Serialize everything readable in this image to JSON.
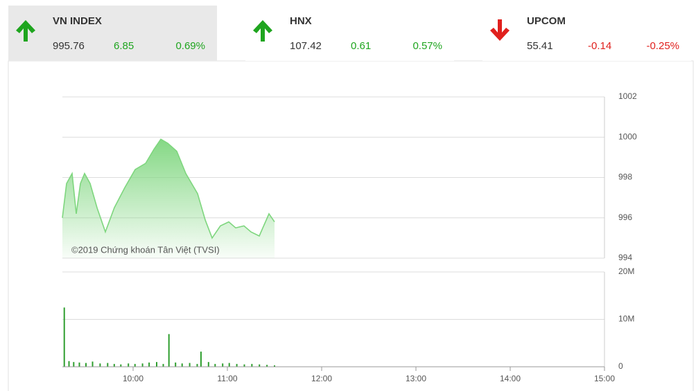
{
  "indices": [
    {
      "name": "VN INDEX",
      "value": "995.76",
      "change": "6.85",
      "percent": "0.69%",
      "direction": "up",
      "selected": true
    },
    {
      "name": "HNX",
      "value": "107.42",
      "change": "0.61",
      "percent": "0.57%",
      "direction": "up",
      "selected": false
    },
    {
      "name": "UPCOM",
      "value": "55.41",
      "change": "-0.14",
      "percent": "-0.25%",
      "direction": "down",
      "selected": false
    }
  ],
  "chart_data": [
    {
      "type": "area",
      "annotation": "©2019 Chứng khoán Tân Việt (TVSI)",
      "color": "#7ed67e",
      "x": [
        9.25,
        9.294,
        9.353,
        9.397,
        9.441,
        9.485,
        9.544,
        9.618,
        9.706,
        9.801,
        9.912,
        10.022,
        10.132,
        10.221,
        10.294,
        10.368,
        10.463,
        10.559,
        10.684,
        10.765,
        10.838,
        10.926,
        11.015,
        11.088,
        11.176,
        11.25,
        11.338,
        11.441,
        11.5
      ],
      "values": [
        996.0,
        997.7,
        998.2,
        996.2,
        997.7,
        998.2,
        997.7,
        996.5,
        995.3,
        996.5,
        997.5,
        998.4,
        998.7,
        999.4,
        999.9,
        999.7,
        999.3,
        998.2,
        997.2,
        995.9,
        995.0,
        995.6,
        995.8,
        995.5,
        995.6,
        995.3,
        995.1,
        996.2,
        995.8
      ],
      "xlim": [
        9.25,
        15
      ],
      "ylim": [
        994,
        1002
      ],
      "yticks": [
        994,
        996,
        998,
        1000,
        1002
      ],
      "grid": true
    },
    {
      "type": "bar",
      "color": "#2e9e2e",
      "x": [
        9.27,
        9.32,
        9.37,
        9.43,
        9.5,
        9.57,
        9.65,
        9.73,
        9.8,
        9.87,
        9.95,
        10.02,
        10.1,
        10.17,
        10.25,
        10.32,
        10.38,
        10.45,
        10.52,
        10.6,
        10.68,
        10.72,
        10.8,
        10.87,
        10.95,
        11.02,
        11.1,
        11.18,
        11.26,
        11.34,
        11.42,
        11.5
      ],
      "values": [
        12500000,
        1200000,
        1000000,
        900000,
        800000,
        1100000,
        700000,
        800000,
        600000,
        500000,
        700000,
        600000,
        700000,
        900000,
        1000000,
        600000,
        6900000,
        900000,
        700000,
        800000,
        600000,
        3200000,
        1000000,
        600000,
        700000,
        800000,
        600000,
        500000,
        600000,
        500000,
        400000,
        300000
      ],
      "xlim": [
        9.25,
        15
      ],
      "xticks": [
        {
          "value": 10,
          "label": "10:00"
        },
        {
          "value": 11,
          "label": "11:00"
        },
        {
          "value": 12,
          "label": "12:00"
        },
        {
          "value": 13,
          "label": "13:00"
        },
        {
          "value": 14,
          "label": "14:00"
        },
        {
          "value": 15,
          "label": "15:00"
        }
      ],
      "ylim": [
        0,
        20000000
      ],
      "yticks": [
        0,
        {
          "value": 10000000,
          "label": "10M"
        },
        {
          "value": 20000000,
          "label": "20M"
        }
      ],
      "grid": true
    }
  ]
}
